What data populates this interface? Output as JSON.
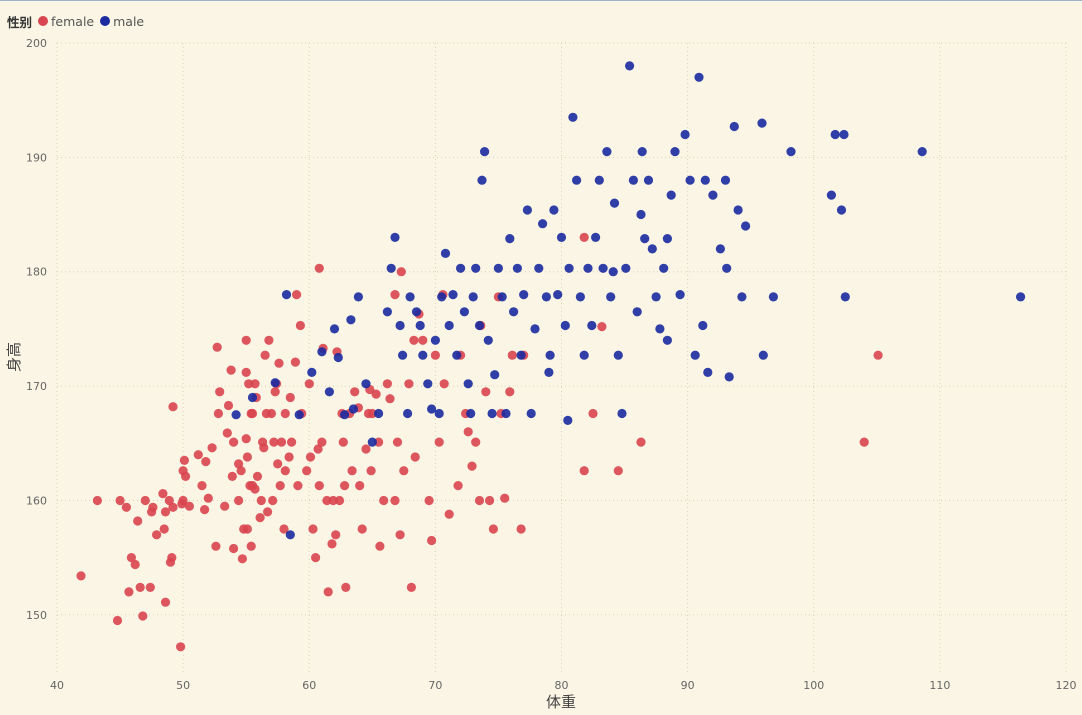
{
  "legend": {
    "title": "性别",
    "items": [
      {
        "label": "female",
        "color": "#d9454f"
      },
      {
        "label": "male",
        "color": "#1a2aa0"
      }
    ]
  },
  "chart_data": {
    "type": "scatter",
    "title": "",
    "xlabel": "体重",
    "ylabel": "身高",
    "xlim": [
      40,
      120
    ],
    "ylim": [
      145,
      200
    ],
    "xticks": [
      40,
      50,
      60,
      70,
      80,
      90,
      100,
      110,
      120
    ],
    "yticks": [
      150,
      160,
      170,
      180,
      190,
      200
    ],
    "grid": true,
    "legend_position": "top-left",
    "series": [
      {
        "name": "female",
        "color": "#d9454f",
        "points": [
          [
            41.9,
            153.4
          ],
          [
            43.2,
            160
          ],
          [
            44.8,
            149.5
          ],
          [
            45,
            160
          ],
          [
            45.5,
            159.4
          ],
          [
            45.7,
            152
          ],
          [
            45.9,
            155
          ],
          [
            46.2,
            154.4
          ],
          [
            46.4,
            158.2
          ],
          [
            46.6,
            152.4
          ],
          [
            46.8,
            149.9
          ],
          [
            47,
            160
          ],
          [
            47.4,
            152.4
          ],
          [
            47.5,
            159
          ],
          [
            47.6,
            159.4
          ],
          [
            47.9,
            157
          ],
          [
            48.4,
            160.6
          ],
          [
            48.5,
            157.5
          ],
          [
            48.6,
            159
          ],
          [
            48.6,
            151.1
          ],
          [
            48.9,
            160
          ],
          [
            49,
            154.6
          ],
          [
            49.1,
            155
          ],
          [
            49.2,
            159.4
          ],
          [
            49.2,
            168.2
          ],
          [
            49.8,
            147.2
          ],
          [
            49.9,
            159.7
          ],
          [
            50,
            160
          ],
          [
            50,
            162.6
          ],
          [
            50.1,
            163.5
          ],
          [
            50.2,
            162.1
          ],
          [
            50.5,
            159.5
          ],
          [
            51.2,
            164
          ],
          [
            51.5,
            161.3
          ],
          [
            51.7,
            159.2
          ],
          [
            51.8,
            163.4
          ],
          [
            52,
            160.2
          ],
          [
            52.3,
            164.6
          ],
          [
            52.6,
            156
          ],
          [
            52.7,
            173.4
          ],
          [
            52.8,
            167.6
          ],
          [
            52.9,
            169.5
          ],
          [
            53.3,
            159.5
          ],
          [
            53.5,
            165.9
          ],
          [
            53.6,
            168.3
          ],
          [
            53.8,
            171.4
          ],
          [
            53.9,
            162.1
          ],
          [
            54,
            155.8
          ],
          [
            54,
            165.1
          ],
          [
            54.4,
            160
          ],
          [
            54.4,
            163.2
          ],
          [
            54.6,
            162.6
          ],
          [
            54.7,
            154.9
          ],
          [
            54.8,
            157.5
          ],
          [
            55,
            165.4
          ],
          [
            55,
            171.2
          ],
          [
            55,
            174
          ],
          [
            55.1,
            163.8
          ],
          [
            55.1,
            157.5
          ],
          [
            55.2,
            170.2
          ],
          [
            55.3,
            161.3
          ],
          [
            55.4,
            167.6
          ],
          [
            55.4,
            156
          ],
          [
            55.5,
            161.3
          ],
          [
            55.5,
            167.6
          ],
          [
            55.7,
            170.2
          ],
          [
            55.7,
            161
          ],
          [
            55.8,
            169
          ],
          [
            55.9,
            162.1
          ],
          [
            56.1,
            158.5
          ],
          [
            56.2,
            160
          ],
          [
            56.3,
            165.1
          ],
          [
            56.4,
            164.6
          ],
          [
            56.5,
            172.7
          ],
          [
            56.6,
            167.6
          ],
          [
            56.7,
            159
          ],
          [
            56.8,
            174
          ],
          [
            57,
            167.6
          ],
          [
            57.1,
            160
          ],
          [
            57.2,
            165.1
          ],
          [
            57.3,
            169.5
          ],
          [
            57.4,
            170.2
          ],
          [
            57.5,
            163.2
          ],
          [
            57.6,
            172
          ],
          [
            57.7,
            161.3
          ],
          [
            57.8,
            165.1
          ],
          [
            58,
            157.5
          ],
          [
            58.1,
            167.6
          ],
          [
            58.1,
            162.6
          ],
          [
            58.4,
            163.8
          ],
          [
            58.5,
            169
          ],
          [
            58.6,
            165.1
          ],
          [
            58.9,
            172.1
          ],
          [
            59.1,
            161.3
          ],
          [
            59.3,
            175.3
          ],
          [
            59.4,
            167.6
          ],
          [
            59.8,
            162.6
          ],
          [
            60,
            170.2
          ],
          [
            60.1,
            163.8
          ],
          [
            60.3,
            157.5
          ],
          [
            60.5,
            155
          ],
          [
            60.7,
            164.5
          ],
          [
            60.8,
            161.3
          ],
          [
            61,
            165.1
          ],
          [
            61.1,
            173.3
          ],
          [
            61.4,
            160
          ],
          [
            61.5,
            152
          ],
          [
            61.8,
            156.2
          ],
          [
            61.9,
            160
          ],
          [
            62.1,
            157
          ],
          [
            62.2,
            173
          ],
          [
            62.4,
            160
          ],
          [
            62.6,
            167.6
          ],
          [
            62.7,
            165.1
          ],
          [
            62.8,
            161.3
          ],
          [
            62.9,
            152.4
          ],
          [
            63.2,
            167.6
          ],
          [
            63.4,
            162.6
          ],
          [
            63.6,
            169.5
          ],
          [
            63.9,
            168.1
          ],
          [
            64,
            161.3
          ],
          [
            64.2,
            157.5
          ],
          [
            64.5,
            164.5
          ],
          [
            64.7,
            167.6
          ],
          [
            64.8,
            169.7
          ],
          [
            64.9,
            162.6
          ],
          [
            65,
            167.6
          ],
          [
            65.3,
            169.3
          ],
          [
            65.5,
            165.1
          ],
          [
            65.6,
            156
          ],
          [
            65.9,
            160
          ],
          [
            66.2,
            170.2
          ],
          [
            66.4,
            168.9
          ],
          [
            66.8,
            160
          ],
          [
            67,
            165.1
          ],
          [
            67.2,
            157
          ],
          [
            67.5,
            162.6
          ],
          [
            67.9,
            170.2
          ],
          [
            68.1,
            152.4
          ],
          [
            68.3,
            174
          ],
          [
            68.4,
            163.8
          ],
          [
            68.7,
            176.3
          ],
          [
            69,
            174
          ],
          [
            69.5,
            160
          ],
          [
            69.7,
            156.5
          ],
          [
            70,
            172.7
          ],
          [
            70.3,
            165.1
          ],
          [
            70.7,
            170.2
          ],
          [
            71.1,
            158.8
          ],
          [
            71.8,
            161.3
          ],
          [
            72,
            172.7
          ],
          [
            72.4,
            167.6
          ],
          [
            72.6,
            166
          ],
          [
            72.9,
            163
          ],
          [
            73.2,
            165.1
          ],
          [
            73.5,
            160
          ],
          [
            73.6,
            175.3
          ],
          [
            74,
            169.5
          ],
          [
            74.3,
            160
          ],
          [
            74.6,
            157.5
          ],
          [
            75.2,
            167.6
          ],
          [
            75.5,
            160.2
          ],
          [
            75.9,
            169.5
          ],
          [
            76.1,
            172.7
          ],
          [
            76.8,
            157.5
          ],
          [
            77,
            172.7
          ],
          [
            81.8,
            162.6
          ],
          [
            82.5,
            167.6
          ],
          [
            83.2,
            175.2
          ],
          [
            84.5,
            162.6
          ],
          [
            86.3,
            165.1
          ],
          [
            104,
            165.1
          ],
          [
            105.1,
            172.7
          ],
          [
            59,
            178
          ],
          [
            60.8,
            180.3
          ],
          [
            67.3,
            180
          ],
          [
            70.6,
            178
          ],
          [
            75,
            177.8
          ],
          [
            81.8,
            183
          ],
          [
            66.8,
            178
          ]
        ]
      },
      {
        "name": "male",
        "color": "#1a2aa0",
        "points": [
          [
            54.2,
            167.5
          ],
          [
            55.5,
            169
          ],
          [
            57.3,
            170.3
          ],
          [
            58.2,
            178
          ],
          [
            58.5,
            157
          ],
          [
            59.2,
            167.5
          ],
          [
            60.2,
            171.2
          ],
          [
            61,
            173
          ],
          [
            61.6,
            169.5
          ],
          [
            62,
            175
          ],
          [
            62.3,
            172.5
          ],
          [
            62.8,
            167.5
          ],
          [
            63.3,
            175.8
          ],
          [
            63.5,
            168
          ],
          [
            63.9,
            177.8
          ],
          [
            64.5,
            170.2
          ],
          [
            65,
            165.1
          ],
          [
            65.5,
            167.6
          ],
          [
            66.2,
            176.5
          ],
          [
            66.5,
            180.3
          ],
          [
            66.8,
            183
          ],
          [
            67.2,
            175.3
          ],
          [
            67.4,
            172.7
          ],
          [
            67.8,
            167.6
          ],
          [
            68,
            177.8
          ],
          [
            68.5,
            176.5
          ],
          [
            68.8,
            175.3
          ],
          [
            69,
            172.7
          ],
          [
            69.4,
            170.2
          ],
          [
            69.7,
            168
          ],
          [
            70,
            174
          ],
          [
            70.3,
            167.6
          ],
          [
            70.5,
            177.8
          ],
          [
            70.8,
            181.6
          ],
          [
            71.1,
            175.3
          ],
          [
            71.4,
            178
          ],
          [
            71.7,
            172.7
          ],
          [
            72,
            180.3
          ],
          [
            72.3,
            176.5
          ],
          [
            72.6,
            170.2
          ],
          [
            72.8,
            167.6
          ],
          [
            73,
            177.8
          ],
          [
            73.2,
            180.3
          ],
          [
            73.5,
            175.3
          ],
          [
            73.7,
            188
          ],
          [
            73.9,
            190.5
          ],
          [
            74.2,
            174
          ],
          [
            74.5,
            167.6
          ],
          [
            74.7,
            171
          ],
          [
            75,
            180.3
          ],
          [
            75.3,
            177.8
          ],
          [
            75.6,
            167.6
          ],
          [
            75.9,
            182.9
          ],
          [
            76.2,
            176.5
          ],
          [
            76.5,
            180.3
          ],
          [
            76.8,
            172.7
          ],
          [
            77,
            178
          ],
          [
            77.3,
            185.4
          ],
          [
            77.6,
            167.6
          ],
          [
            77.9,
            175
          ],
          [
            78.2,
            180.3
          ],
          [
            78.5,
            184.2
          ],
          [
            78.8,
            177.8
          ],
          [
            79.1,
            172.7
          ],
          [
            79.4,
            185.4
          ],
          [
            79.7,
            178
          ],
          [
            80,
            183
          ],
          [
            80.3,
            175.3
          ],
          [
            80.6,
            180.3
          ],
          [
            80.9,
            193.5
          ],
          [
            81.2,
            188
          ],
          [
            81.5,
            177.8
          ],
          [
            81.8,
            172.7
          ],
          [
            82.1,
            180.3
          ],
          [
            82.4,
            175.3
          ],
          [
            82.7,
            183
          ],
          [
            83,
            188
          ],
          [
            83.3,
            180.3
          ],
          [
            83.6,
            190.5
          ],
          [
            83.9,
            177.8
          ],
          [
            84.2,
            186
          ],
          [
            84.5,
            172.7
          ],
          [
            84.8,
            167.6
          ],
          [
            85.1,
            180.3
          ],
          [
            85.4,
            198
          ],
          [
            85.7,
            188
          ],
          [
            86,
            176.5
          ],
          [
            86.3,
            185
          ],
          [
            86.6,
            182.9
          ],
          [
            86.9,
            188
          ],
          [
            87.2,
            182
          ],
          [
            87.5,
            177.8
          ],
          [
            87.8,
            175
          ],
          [
            88.1,
            180.3
          ],
          [
            88.4,
            182.9
          ],
          [
            88.7,
            186.7
          ],
          [
            89,
            190.5
          ],
          [
            89.4,
            178
          ],
          [
            89.8,
            192
          ],
          [
            90.2,
            188
          ],
          [
            90.6,
            172.7
          ],
          [
            90.9,
            197
          ],
          [
            91.2,
            175.3
          ],
          [
            91.6,
            171.2
          ],
          [
            92,
            186.7
          ],
          [
            92.6,
            182
          ],
          [
            93.1,
            180.3
          ],
          [
            93.3,
            170.8
          ],
          [
            93.7,
            192.7
          ],
          [
            94,
            185.4
          ],
          [
            94.3,
            177.8
          ],
          [
            94.6,
            184
          ],
          [
            95.9,
            193
          ],
          [
            96.8,
            177.8
          ],
          [
            98.2,
            190.5
          ],
          [
            101.4,
            186.7
          ],
          [
            101.7,
            192
          ],
          [
            102.2,
            185.4
          ],
          [
            102.4,
            192
          ],
          [
            102.5,
            177.8
          ],
          [
            108.6,
            190.5
          ],
          [
            116.4,
            177.8
          ],
          [
            96,
            172.7
          ],
          [
            93,
            188
          ],
          [
            91.4,
            188
          ],
          [
            88.4,
            174
          ],
          [
            86.4,
            190.5
          ],
          [
            84.1,
            180
          ],
          [
            80.5,
            167
          ],
          [
            79,
            171.2
          ]
        ]
      }
    ]
  }
}
